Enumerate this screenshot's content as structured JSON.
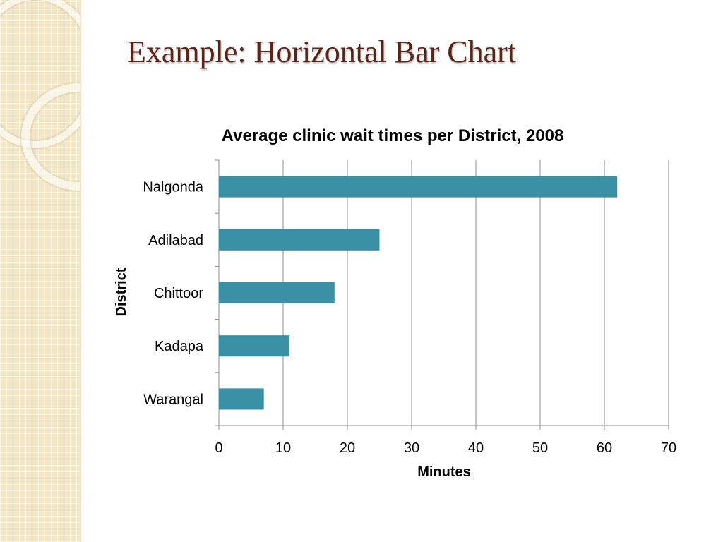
{
  "slide": {
    "title": "Example: Horizontal Bar Chart"
  },
  "colors": {
    "bar": "#3a91a5",
    "title": "#5a2416",
    "grid": "#8c8c8c",
    "sidebar": "#f3e6c4"
  },
  "chart_data": {
    "type": "bar",
    "orientation": "horizontal",
    "title": "Average clinic wait times per District, 2008",
    "xlabel": "Minutes",
    "ylabel": "District",
    "categories": [
      "Nalgonda",
      "Adilabad",
      "Chittoor",
      "Kadapa",
      "Warangal"
    ],
    "values": [
      62,
      25,
      18,
      11,
      7
    ],
    "xlim": [
      0,
      70
    ],
    "xticks": [
      "0",
      "10",
      "20",
      "30",
      "40",
      "50",
      "60",
      "70"
    ],
    "grid": "vertical"
  }
}
